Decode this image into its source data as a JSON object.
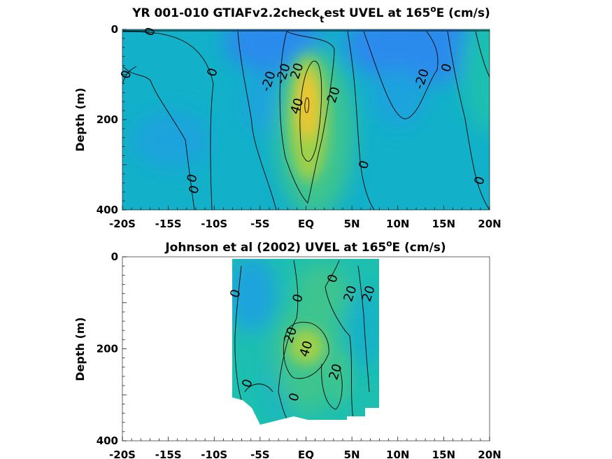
{
  "colors": {
    "strong_west": "#2a8bec",
    "west": "#1aa3dd",
    "neutral": "#12b0c9",
    "weak_east": "#1dbfb0",
    "east": "#3cc48f",
    "strong_east": "#9fd04a",
    "jet_core": "#f0c52e"
  },
  "chart_data": [
    {
      "type": "contour",
      "title_main": "YR 001-010 GTIAFv2.2check",
      "title_sub": "t",
      "title_rest": "est UVEL at 165",
      "title_sup": "o",
      "title_end": "E (cm/s)",
      "ylabel": "Depth (m)",
      "xticks": [
        "-20S",
        "-15S",
        "-10S",
        "-5S",
        "EQ",
        "5N",
        "10N",
        "15N",
        "20N"
      ],
      "xlim": [
        -20,
        20
      ],
      "yticks": [
        "0",
        "200",
        "400"
      ],
      "ylim": [
        0,
        400
      ],
      "contour_labels": [
        {
          "text": "0",
          "x": -17.0,
          "y": 5
        },
        {
          "text": "0",
          "x": -19.6,
          "y": 100
        },
        {
          "text": "0",
          "x": -10.2,
          "y": 95
        },
        {
          "text": "-20",
          "x": -4.1,
          "y": 115
        },
        {
          "text": "-20",
          "x": -2.5,
          "y": 98
        },
        {
          "text": "-20",
          "x": 12.6,
          "y": 110
        },
        {
          "text": "0",
          "x": 15.3,
          "y": 85
        },
        {
          "text": "20",
          "x": -1.0,
          "y": 92
        },
        {
          "text": "20",
          "x": 3.0,
          "y": 145
        },
        {
          "text": "40",
          "x": -1.0,
          "y": 170
        },
        {
          "text": "0",
          "x": -12.4,
          "y": 330
        },
        {
          "text": "0",
          "x": -12.2,
          "y": 355
        },
        {
          "text": "0",
          "x": 6.3,
          "y": 300
        },
        {
          "text": "0",
          "x": 18.9,
          "y": 335
        }
      ]
    },
    {
      "type": "contour",
      "title_main": "Johnson et al (2002) UVEL at 165",
      "title_sup": "o",
      "title_end": "E (cm/s)",
      "ylabel": "Depth (m)",
      "xticks": [
        "-20S",
        "-15S",
        "-10S",
        "-5S",
        "EQ",
        "5N",
        "10N",
        "15N",
        "20N"
      ],
      "xlim": [
        -20,
        20
      ],
      "yticks": [
        "0",
        "200",
        "400"
      ],
      "ylim": [
        0,
        400
      ],
      "data_extent": {
        "lon": [
          -8,
          8
        ],
        "depth": [
          0,
          360
        ]
      },
      "contour_labels": [
        {
          "text": "0",
          "x": -7.7,
          "y": 80
        },
        {
          "text": "0",
          "x": -0.9,
          "y": 90
        },
        {
          "text": "0",
          "x": 2.9,
          "y": 47
        },
        {
          "text": "20",
          "x": 4.8,
          "y": 80
        },
        {
          "text": "20",
          "x": 6.8,
          "y": 80
        },
        {
          "text": "20",
          "x": -1.7,
          "y": 170
        },
        {
          "text": "40",
          "x": 0.0,
          "y": 200
        },
        {
          "text": "20",
          "x": 3.2,
          "y": 250
        },
        {
          "text": "0",
          "x": -6.4,
          "y": 275
        },
        {
          "text": "0",
          "x": -1.3,
          "y": 305
        }
      ]
    }
  ]
}
